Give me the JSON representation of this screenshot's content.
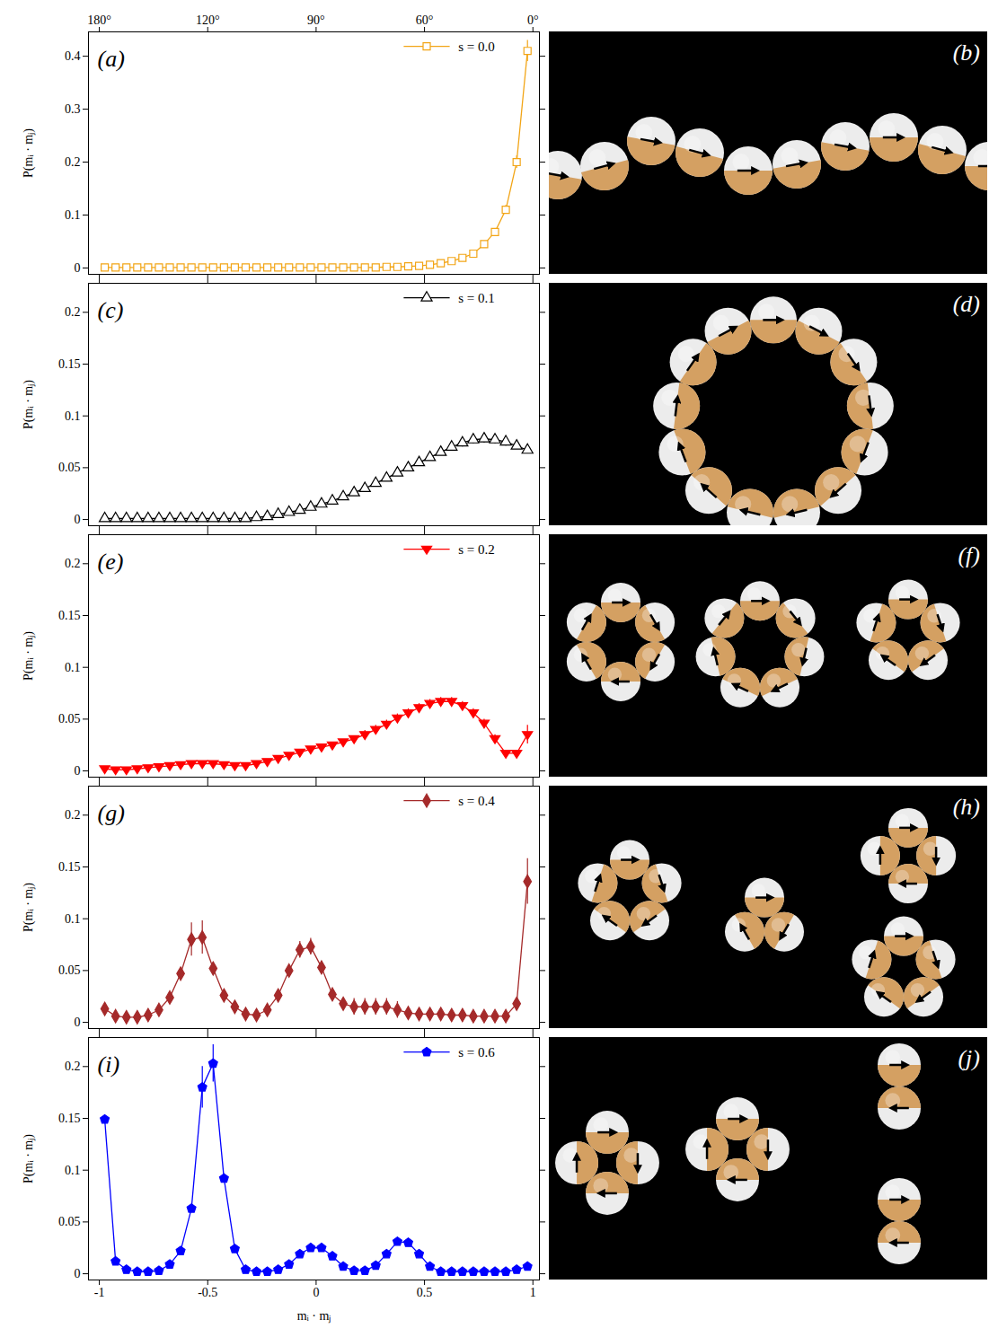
{
  "chart_data": [
    {
      "type": "line",
      "panel_label": "(a)",
      "xlim": [
        -1.05,
        1.03
      ],
      "ylim": [
        -0.012,
        0.446
      ],
      "xticks": [
        -1,
        -0.5,
        0,
        0.5,
        1
      ],
      "x2ticks": [
        {
          "value": -1,
          "label": "180°"
        },
        {
          "value": -0.5,
          "label": "120°"
        },
        {
          "value": 0,
          "label": "90°"
        },
        {
          "value": 0.5,
          "label": "60°"
        },
        {
          "value": 1,
          "label": "0°"
        }
      ],
      "yticks": [
        0,
        0.1,
        0.2,
        0.3,
        0.4
      ],
      "ylabel": "P(mᵢ · mⱼ)",
      "tick_labels": "y",
      "legend": "top-right",
      "x": [
        -0.975,
        -0.925,
        -0.875,
        -0.825,
        -0.775,
        -0.725,
        -0.675,
        -0.625,
        -0.575,
        -0.525,
        -0.475,
        -0.425,
        -0.375,
        -0.325,
        -0.275,
        -0.225,
        -0.175,
        -0.125,
        -0.075,
        -0.025,
        0.025,
        0.075,
        0.125,
        0.175,
        0.225,
        0.275,
        0.325,
        0.375,
        0.425,
        0.475,
        0.525,
        0.575,
        0.625,
        0.675,
        0.725,
        0.775,
        0.825,
        0.875,
        0.925,
        0.975
      ],
      "series": [
        {
          "name": "s = 0.0",
          "color": "#f2a516",
          "marker": "open square",
          "values": [
            0.001,
            0.001,
            0.001,
            0.001,
            0.001,
            0.001,
            0.001,
            0.001,
            0.001,
            0.001,
            0.001,
            0.001,
            0.001,
            0.001,
            0.001,
            0.001,
            0.001,
            0.001,
            0.001,
            0.001,
            0.001,
            0.001,
            0.001,
            0.001,
            0.001,
            0.001,
            0.002,
            0.002,
            0.003,
            0.004,
            0.006,
            0.009,
            0.013,
            0.019,
            0.027,
            0.045,
            0.068,
            0.11,
            0.2,
            0.41
          ],
          "errors": [
            0,
            0,
            0,
            0,
            0,
            0,
            0,
            0,
            0,
            0,
            0,
            0,
            0,
            0,
            0,
            0,
            0,
            0,
            0,
            0,
            0,
            0,
            0,
            0,
            0,
            0,
            0,
            0,
            0,
            0,
            0,
            0,
            0,
            0,
            0.002,
            0.003,
            0.004,
            0.008,
            0.012,
            0.02
          ]
        }
      ]
    },
    {
      "type": "line",
      "panel_label": "(c)",
      "xlim": [
        -1.05,
        1.03
      ],
      "ylim": [
        -0.006,
        0.228
      ],
      "xticks": [
        -1,
        -0.5,
        0,
        0.5,
        1
      ],
      "yticks": [
        0,
        0.05,
        0.1,
        0.15,
        0.2
      ],
      "ylabel": "P(mᵢ · mⱼ)",
      "tick_labels": "y",
      "legend": "top-right",
      "x": [
        -0.975,
        -0.925,
        -0.875,
        -0.825,
        -0.775,
        -0.725,
        -0.675,
        -0.625,
        -0.575,
        -0.525,
        -0.475,
        -0.425,
        -0.375,
        -0.325,
        -0.275,
        -0.225,
        -0.175,
        -0.125,
        -0.075,
        -0.025,
        0.025,
        0.075,
        0.125,
        0.175,
        0.225,
        0.275,
        0.325,
        0.375,
        0.425,
        0.475,
        0.525,
        0.575,
        0.625,
        0.675,
        0.725,
        0.775,
        0.825,
        0.875,
        0.925,
        0.975
      ],
      "series": [
        {
          "name": "s = 0.1",
          "color": "#000000",
          "marker": "open triangle",
          "values": [
            0.001,
            0.001,
            0.001,
            0.001,
            0.001,
            0.001,
            0.001,
            0.001,
            0.001,
            0.001,
            0.001,
            0.001,
            0.001,
            0.001,
            0.002,
            0.003,
            0.005,
            0.007,
            0.009,
            0.012,
            0.015,
            0.018,
            0.022,
            0.026,
            0.03,
            0.035,
            0.04,
            0.045,
            0.05,
            0.055,
            0.06,
            0.065,
            0.07,
            0.074,
            0.077,
            0.078,
            0.077,
            0.075,
            0.071,
            0.067
          ],
          "errors": [
            0,
            0,
            0,
            0,
            0,
            0,
            0,
            0,
            0,
            0,
            0,
            0,
            0,
            0,
            0,
            0,
            0,
            0,
            0,
            0,
            0,
            0,
            0,
            0,
            0,
            0,
            0,
            0,
            0,
            0,
            0.002,
            0.002,
            0.002,
            0.004,
            0.004,
            0.004,
            0.004,
            0.004,
            0.003,
            0.003
          ]
        }
      ]
    },
    {
      "type": "line",
      "panel_label": "(e)",
      "xlim": [
        -1.05,
        1.03
      ],
      "ylim": [
        -0.006,
        0.228
      ],
      "xticks": [
        -1,
        -0.5,
        0,
        0.5,
        1
      ],
      "yticks": [
        0,
        0.05,
        0.1,
        0.15,
        0.2
      ],
      "ylabel": "P(mᵢ · mⱼ)",
      "tick_labels": "y",
      "legend": "top-right",
      "x": [
        -0.975,
        -0.925,
        -0.875,
        -0.825,
        -0.775,
        -0.725,
        -0.675,
        -0.625,
        -0.575,
        -0.525,
        -0.475,
        -0.425,
        -0.375,
        -0.325,
        -0.275,
        -0.225,
        -0.175,
        -0.125,
        -0.075,
        -0.025,
        0.025,
        0.075,
        0.125,
        0.175,
        0.225,
        0.275,
        0.325,
        0.375,
        0.425,
        0.475,
        0.525,
        0.575,
        0.625,
        0.675,
        0.725,
        0.775,
        0.825,
        0.875,
        0.925,
        0.975
      ],
      "series": [
        {
          "name": "s = 0.2",
          "color": "#ff0000",
          "marker": "down triangle",
          "values": [
            0.002,
            0.001,
            0.001,
            0.002,
            0.003,
            0.004,
            0.005,
            0.006,
            0.007,
            0.007,
            0.007,
            0.006,
            0.005,
            0.005,
            0.007,
            0.009,
            0.012,
            0.015,
            0.018,
            0.021,
            0.023,
            0.025,
            0.028,
            0.031,
            0.035,
            0.04,
            0.045,
            0.051,
            0.056,
            0.061,
            0.065,
            0.067,
            0.067,
            0.063,
            0.056,
            0.046,
            0.031,
            0.017,
            0.017,
            0.035
          ],
          "errors": [
            0,
            0,
            0,
            0,
            0,
            0,
            0,
            0,
            0,
            0,
            0,
            0,
            0,
            0,
            0,
            0,
            0,
            0,
            0,
            0,
            0,
            0,
            0,
            0,
            0.004,
            0.004,
            0.004,
            0.004,
            0.004,
            0.004,
            0.004,
            0.004,
            0.004,
            0.004,
            0.004,
            0.004,
            0.004,
            0.003,
            0.003,
            0.009
          ]
        }
      ]
    },
    {
      "type": "line",
      "panel_label": "(g)",
      "xlim": [
        -1.05,
        1.03
      ],
      "ylim": [
        -0.006,
        0.228
      ],
      "xticks": [
        -1,
        -0.5,
        0,
        0.5,
        1
      ],
      "yticks": [
        0,
        0.05,
        0.1,
        0.15,
        0.2
      ],
      "ylabel": "P(mᵢ · mⱼ)",
      "tick_labels": "y",
      "legend": "top-right",
      "x": [
        -0.975,
        -0.925,
        -0.875,
        -0.825,
        -0.775,
        -0.725,
        -0.675,
        -0.625,
        -0.575,
        -0.525,
        -0.475,
        -0.425,
        -0.375,
        -0.325,
        -0.275,
        -0.225,
        -0.175,
        -0.125,
        -0.075,
        -0.025,
        0.025,
        0.075,
        0.125,
        0.175,
        0.225,
        0.275,
        0.325,
        0.375,
        0.425,
        0.475,
        0.525,
        0.575,
        0.625,
        0.675,
        0.725,
        0.775,
        0.825,
        0.875,
        0.925,
        0.975
      ],
      "series": [
        {
          "name": "s = 0.4",
          "color": "#a52a2a",
          "marker": "diamond",
          "values": [
            0.013,
            0.006,
            0.005,
            0.005,
            0.007,
            0.012,
            0.024,
            0.047,
            0.08,
            0.082,
            0.052,
            0.026,
            0.015,
            0.008,
            0.007,
            0.012,
            0.026,
            0.05,
            0.07,
            0.073,
            0.053,
            0.027,
            0.018,
            0.015,
            0.015,
            0.015,
            0.015,
            0.012,
            0.009,
            0.008,
            0.008,
            0.008,
            0.007,
            0.007,
            0.006,
            0.006,
            0.006,
            0.006,
            0.018,
            0.136
          ],
          "errors": [
            0,
            0,
            0,
            0,
            0,
            0,
            0,
            0.004,
            0.016,
            0.016,
            0.006,
            0,
            0,
            0,
            0,
            0,
            0,
            0,
            0.008,
            0.008,
            0.006,
            0,
            0,
            0.008,
            0.008,
            0.008,
            0.008,
            0.008,
            0,
            0,
            0,
            0,
            0,
            0,
            0,
            0,
            0,
            0,
            0,
            0.022
          ]
        }
      ]
    },
    {
      "type": "line",
      "panel_label": "(i)",
      "xlim": [
        -1.05,
        1.03
      ],
      "ylim": [
        -0.006,
        0.228
      ],
      "xticks": [
        -1,
        -0.5,
        0,
        0.5,
        1
      ],
      "yticks": [
        0,
        0.05,
        0.1,
        0.15,
        0.2
      ],
      "ylabel": "P(mᵢ · mⱼ)",
      "xlabel": "mᵢ · mⱼ",
      "legend": "top-right",
      "x": [
        -0.975,
        -0.925,
        -0.875,
        -0.825,
        -0.775,
        -0.725,
        -0.675,
        -0.625,
        -0.575,
        -0.525,
        -0.475,
        -0.425,
        -0.375,
        -0.325,
        -0.275,
        -0.225,
        -0.175,
        -0.125,
        -0.075,
        -0.025,
        0.025,
        0.075,
        0.125,
        0.175,
        0.225,
        0.275,
        0.325,
        0.375,
        0.425,
        0.475,
        0.525,
        0.575,
        0.625,
        0.675,
        0.725,
        0.775,
        0.825,
        0.875,
        0.925,
        0.975
      ],
      "series": [
        {
          "name": "s = 0.6",
          "color": "#0000ff",
          "marker": "pentagon",
          "values": [
            0.149,
            0.012,
            0.004,
            0.002,
            0.002,
            0.003,
            0.009,
            0.022,
            0.063,
            0.18,
            0.203,
            0.092,
            0.024,
            0.004,
            0.002,
            0.002,
            0.004,
            0.009,
            0.019,
            0.025,
            0.025,
            0.017,
            0.007,
            0.003,
            0.003,
            0.008,
            0.019,
            0.031,
            0.03,
            0.019,
            0.007,
            0.002,
            0.002,
            0.002,
            0.002,
            0.002,
            0.002,
            0.002,
            0.004,
            0.007
          ],
          "errors": [
            0.003,
            0,
            0,
            0,
            0,
            0,
            0,
            0,
            0,
            0.02,
            0.018,
            0.004,
            0,
            0,
            0,
            0,
            0,
            0,
            0,
            0.004,
            0.004,
            0,
            0,
            0,
            0,
            0,
            0,
            0.004,
            0.004,
            0,
            0,
            0,
            0,
            0,
            0,
            0,
            0,
            0,
            0,
            0
          ]
        }
      ]
    }
  ],
  "images": [
    {
      "label": "(b)"
    },
    {
      "label": "(d)"
    },
    {
      "label": "(f)"
    },
    {
      "label": "(h)"
    },
    {
      "label": "(j)"
    }
  ]
}
